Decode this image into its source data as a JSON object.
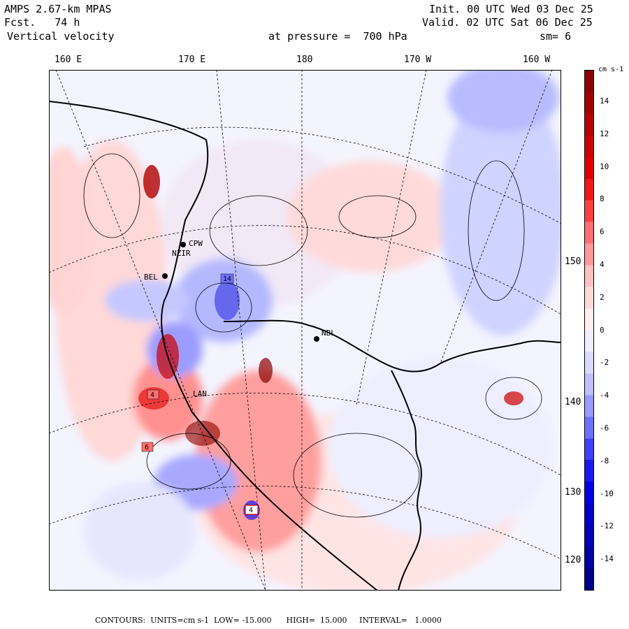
{
  "header": {
    "model": "AMPS 2.67-km MPAS",
    "fcst": "Fcst.   74 h",
    "field": "Vertical velocity",
    "init": "Init. 00 UTC Wed 03 Dec 25",
    "valid": "Valid. 02 UTC Sat 06 Dec 25",
    "pressure": "at pressure =  700 hPa",
    "smooth": "sm= 6"
  },
  "map": {
    "lon_labels": [
      "160 E",
      "170 E",
      "180",
      "170 W",
      "160 W"
    ],
    "lat_labels": [
      "150 W",
      "140 W",
      "130 W",
      "120 W"
    ],
    "stations": [
      "CPW",
      "NZIR",
      "BEL",
      "LAN",
      "NBL"
    ],
    "box_values": [
      "14",
      "4",
      "6",
      "4"
    ]
  },
  "colorbar": {
    "unit": "cm s-1",
    "ticks": [
      "14",
      "12",
      "10",
      "8",
      "6",
      "4",
      "2",
      "0",
      "-2",
      "-4",
      "-6",
      "-8",
      "-10",
      "-12",
      "-14"
    ],
    "colors": [
      "#8b0000",
      "#a00000",
      "#b80000",
      "#cc0000",
      "#e00000",
      "#f01a1a",
      "#ff4040",
      "#ff7070",
      "#ff9a9a",
      "#ffc0c0",
      "#ffdada",
      "#ffeeee",
      "#eeeeff",
      "#dadaff",
      "#c0c0ff",
      "#9a9aff",
      "#7070ff",
      "#4040ff",
      "#1a1af0",
      "#0000e0",
      "#0000cc",
      "#0000b8",
      "#0000a0",
      "#00008b"
    ]
  },
  "footer": "CONTOURS:  UNITS=cm s-1  LOW= -15.000      HIGH=  15.000     INTERVAL=   1.0000"
}
